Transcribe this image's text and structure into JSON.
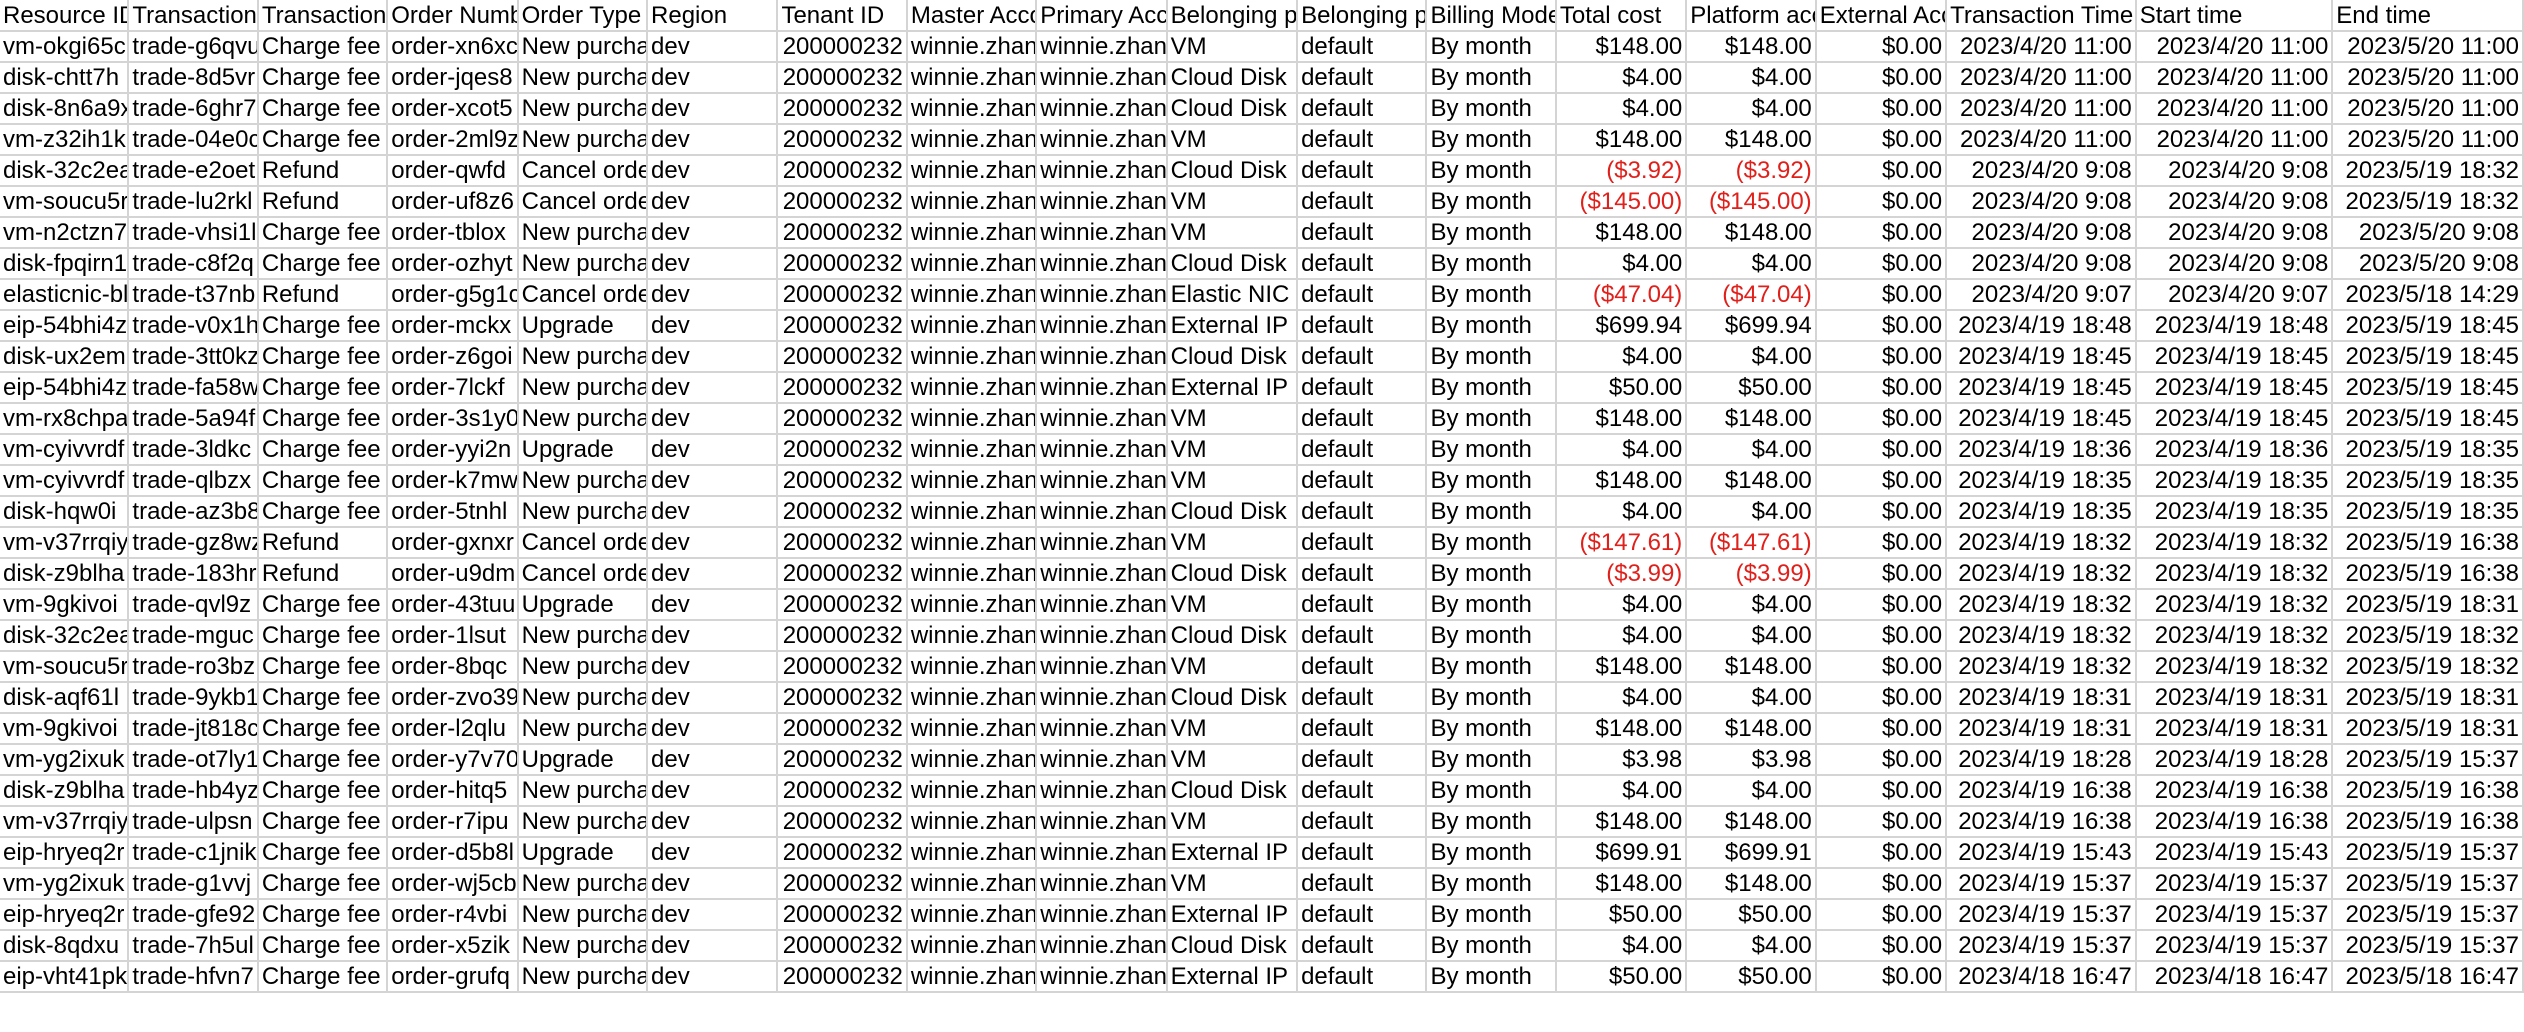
{
  "columns": [
    "Resource ID",
    "Transaction",
    "Transaction",
    "Order Numb",
    "Order Type",
    "Region",
    "Tenant ID",
    "Master Acco",
    "Primary Acc",
    "Belonging p",
    "Belonging p",
    "Billing Mode",
    "Total cost",
    "Platform acc",
    "External Acc",
    "Transaction Time",
    "Start time",
    "End time"
  ],
  "rows": [
    [
      "vm-okgi65c",
      "trade-g6qvu",
      "Charge fee",
      "order-xn6xc",
      "New purcha",
      "dev",
      "200000232",
      "winnie.zhan",
      "winnie.zhan",
      "VM",
      "default",
      "By month",
      "$148.00",
      "$148.00",
      "$0.00",
      "2023/4/20 11:00",
      "2023/4/20 11:00",
      "2023/5/20 11:00"
    ],
    [
      "disk-chtt7h",
      "trade-8d5vr",
      "Charge fee",
      "order-jqes8",
      "New purcha",
      "dev",
      "200000232",
      "winnie.zhan",
      "winnie.zhan",
      "Cloud Disk",
      "default",
      "By month",
      "$4.00",
      "$4.00",
      "$0.00",
      "2023/4/20 11:00",
      "2023/4/20 11:00",
      "2023/5/20 11:00"
    ],
    [
      "disk-8n6a9x",
      "trade-6ghr7",
      "Charge fee",
      "order-xcot5",
      "New purcha",
      "dev",
      "200000232",
      "winnie.zhan",
      "winnie.zhan",
      "Cloud Disk",
      "default",
      "By month",
      "$4.00",
      "$4.00",
      "$0.00",
      "2023/4/20 11:00",
      "2023/4/20 11:00",
      "2023/5/20 11:00"
    ],
    [
      "vm-z32ih1k",
      "trade-04e0c",
      "Charge fee",
      "order-2ml9z",
      "New purcha",
      "dev",
      "200000232",
      "winnie.zhan",
      "winnie.zhan",
      "VM",
      "default",
      "By month",
      "$148.00",
      "$148.00",
      "$0.00",
      "2023/4/20 11:00",
      "2023/4/20 11:00",
      "2023/5/20 11:00"
    ],
    [
      "disk-32c2ea",
      "trade-e2oet",
      "Refund",
      "order-qwfd",
      "Cancel orde",
      "dev",
      "200000232",
      "winnie.zhan",
      "winnie.zhan",
      "Cloud Disk",
      "default",
      "By month",
      "($3.92)",
      "($3.92)",
      "$0.00",
      "2023/4/20 9:08",
      "2023/4/20 9:08",
      "2023/5/19 18:32"
    ],
    [
      "vm-soucu5r",
      "trade-lu2rkl",
      "Refund",
      "order-uf8z6",
      "Cancel orde",
      "dev",
      "200000232",
      "winnie.zhan",
      "winnie.zhan",
      "VM",
      "default",
      "By month",
      "($145.00)",
      "($145.00)",
      "$0.00",
      "2023/4/20 9:08",
      "2023/4/20 9:08",
      "2023/5/19 18:32"
    ],
    [
      "vm-n2ctzn7",
      "trade-vhsi1l",
      "Charge fee",
      "order-tblox",
      "New purcha",
      "dev",
      "200000232",
      "winnie.zhan",
      "winnie.zhan",
      "VM",
      "default",
      "By month",
      "$148.00",
      "$148.00",
      "$0.00",
      "2023/4/20 9:08",
      "2023/4/20 9:08",
      "2023/5/20 9:08"
    ],
    [
      "disk-fpqirn1",
      "trade-c8f2q",
      "Charge fee",
      "order-ozhyt",
      "New purcha",
      "dev",
      "200000232",
      "winnie.zhan",
      "winnie.zhan",
      "Cloud Disk",
      "default",
      "By month",
      "$4.00",
      "$4.00",
      "$0.00",
      "2023/4/20 9:08",
      "2023/4/20 9:08",
      "2023/5/20 9:08"
    ],
    [
      "elasticnic-bl",
      "trade-t37nb",
      "Refund",
      "order-g5g1c",
      "Cancel orde",
      "dev",
      "200000232",
      "winnie.zhan",
      "winnie.zhan",
      "Elastic NIC",
      "default",
      "By month",
      "($47.04)",
      "($47.04)",
      "$0.00",
      "2023/4/20 9:07",
      "2023/4/20 9:07",
      "2023/5/18 14:29"
    ],
    [
      "eip-54bhi4z",
      "trade-v0x1h",
      "Charge fee",
      "order-mckx",
      "Upgrade",
      "dev",
      "200000232",
      "winnie.zhan",
      "winnie.zhan",
      "External IP",
      "default",
      "By month",
      "$699.94",
      "$699.94",
      "$0.00",
      "2023/4/19 18:48",
      "2023/4/19 18:48",
      "2023/5/19 18:45"
    ],
    [
      "disk-ux2em",
      "trade-3tt0kz",
      "Charge fee",
      "order-z6goi",
      "New purcha",
      "dev",
      "200000232",
      "winnie.zhan",
      "winnie.zhan",
      "Cloud Disk",
      "default",
      "By month",
      "$4.00",
      "$4.00",
      "$0.00",
      "2023/4/19 18:45",
      "2023/4/19 18:45",
      "2023/5/19 18:45"
    ],
    [
      "eip-54bhi4z",
      "trade-fa58w",
      "Charge fee",
      "order-7lckf",
      "New purcha",
      "dev",
      "200000232",
      "winnie.zhan",
      "winnie.zhan",
      "External IP",
      "default",
      "By month",
      "$50.00",
      "$50.00",
      "$0.00",
      "2023/4/19 18:45",
      "2023/4/19 18:45",
      "2023/5/19 18:45"
    ],
    [
      "vm-rx8chpa",
      "trade-5a94f",
      "Charge fee",
      "order-3s1y0",
      "New purcha",
      "dev",
      "200000232",
      "winnie.zhan",
      "winnie.zhan",
      "VM",
      "default",
      "By month",
      "$148.00",
      "$148.00",
      "$0.00",
      "2023/4/19 18:45",
      "2023/4/19 18:45",
      "2023/5/19 18:45"
    ],
    [
      "vm-cyivvrdf",
      "trade-3ldkc",
      "Charge fee",
      "order-yyi2n",
      "Upgrade",
      "dev",
      "200000232",
      "winnie.zhan",
      "winnie.zhan",
      "VM",
      "default",
      "By month",
      "$4.00",
      "$4.00",
      "$0.00",
      "2023/4/19 18:36",
      "2023/4/19 18:36",
      "2023/5/19 18:35"
    ],
    [
      "vm-cyivvrdf",
      "trade-qlbzx",
      "Charge fee",
      "order-k7mw",
      "New purcha",
      "dev",
      "200000232",
      "winnie.zhan",
      "winnie.zhan",
      "VM",
      "default",
      "By month",
      "$148.00",
      "$148.00",
      "$0.00",
      "2023/4/19 18:35",
      "2023/4/19 18:35",
      "2023/5/19 18:35"
    ],
    [
      "disk-hqw0i",
      "trade-az3b8",
      "Charge fee",
      "order-5tnhl",
      "New purcha",
      "dev",
      "200000232",
      "winnie.zhan",
      "winnie.zhan",
      "Cloud Disk",
      "default",
      "By month",
      "$4.00",
      "$4.00",
      "$0.00",
      "2023/4/19 18:35",
      "2023/4/19 18:35",
      "2023/5/19 18:35"
    ],
    [
      "vm-v37rrqiy",
      "trade-gz8wz",
      "Refund",
      "order-gxnxr",
      "Cancel orde",
      "dev",
      "200000232",
      "winnie.zhan",
      "winnie.zhan",
      "VM",
      "default",
      "By month",
      "($147.61)",
      "($147.61)",
      "$0.00",
      "2023/4/19 18:32",
      "2023/4/19 18:32",
      "2023/5/19 16:38"
    ],
    [
      "disk-z9blha",
      "trade-183hr",
      "Refund",
      "order-u9dm",
      "Cancel orde",
      "dev",
      "200000232",
      "winnie.zhan",
      "winnie.zhan",
      "Cloud Disk",
      "default",
      "By month",
      "($3.99)",
      "($3.99)",
      "$0.00",
      "2023/4/19 18:32",
      "2023/4/19 18:32",
      "2023/5/19 16:38"
    ],
    [
      "vm-9gkivoi",
      "trade-qvl9z",
      "Charge fee",
      "order-43tuu",
      "Upgrade",
      "dev",
      "200000232",
      "winnie.zhan",
      "winnie.zhan",
      "VM",
      "default",
      "By month",
      "$4.00",
      "$4.00",
      "$0.00",
      "2023/4/19 18:32",
      "2023/4/19 18:32",
      "2023/5/19 18:31"
    ],
    [
      "disk-32c2ea",
      "trade-mguc",
      "Charge fee",
      "order-1lsut",
      "New purcha",
      "dev",
      "200000232",
      "winnie.zhan",
      "winnie.zhan",
      "Cloud Disk",
      "default",
      "By month",
      "$4.00",
      "$4.00",
      "$0.00",
      "2023/4/19 18:32",
      "2023/4/19 18:32",
      "2023/5/19 18:32"
    ],
    [
      "vm-soucu5r",
      "trade-ro3bz",
      "Charge fee",
      "order-8bqc",
      "New purcha",
      "dev",
      "200000232",
      "winnie.zhan",
      "winnie.zhan",
      "VM",
      "default",
      "By month",
      "$148.00",
      "$148.00",
      "$0.00",
      "2023/4/19 18:32",
      "2023/4/19 18:32",
      "2023/5/19 18:32"
    ],
    [
      "disk-aqf61l",
      "trade-9ykb1",
      "Charge fee",
      "order-zvo39",
      "New purcha",
      "dev",
      "200000232",
      "winnie.zhan",
      "winnie.zhan",
      "Cloud Disk",
      "default",
      "By month",
      "$4.00",
      "$4.00",
      "$0.00",
      "2023/4/19 18:31",
      "2023/4/19 18:31",
      "2023/5/19 18:31"
    ],
    [
      "vm-9gkivoi",
      "trade-jt818c",
      "Charge fee",
      "order-l2qlu",
      "New purcha",
      "dev",
      "200000232",
      "winnie.zhan",
      "winnie.zhan",
      "VM",
      "default",
      "By month",
      "$148.00",
      "$148.00",
      "$0.00",
      "2023/4/19 18:31",
      "2023/4/19 18:31",
      "2023/5/19 18:31"
    ],
    [
      "vm-yg2ixuk",
      "trade-ot7ly1",
      "Charge fee",
      "order-y7v70",
      "Upgrade",
      "dev",
      "200000232",
      "winnie.zhan",
      "winnie.zhan",
      "VM",
      "default",
      "By month",
      "$3.98",
      "$3.98",
      "$0.00",
      "2023/4/19 18:28",
      "2023/4/19 18:28",
      "2023/5/19 15:37"
    ],
    [
      "disk-z9blha",
      "trade-hb4yz",
      "Charge fee",
      "order-hitq5",
      "New purcha",
      "dev",
      "200000232",
      "winnie.zhan",
      "winnie.zhan",
      "Cloud Disk",
      "default",
      "By month",
      "$4.00",
      "$4.00",
      "$0.00",
      "2023/4/19 16:38",
      "2023/4/19 16:38",
      "2023/5/19 16:38"
    ],
    [
      "vm-v37rrqiy",
      "trade-ulpsn",
      "Charge fee",
      "order-r7ipu",
      "New purcha",
      "dev",
      "200000232",
      "winnie.zhan",
      "winnie.zhan",
      "VM",
      "default",
      "By month",
      "$148.00",
      "$148.00",
      "$0.00",
      "2023/4/19 16:38",
      "2023/4/19 16:38",
      "2023/5/19 16:38"
    ],
    [
      "eip-hryeq2r",
      "trade-c1jnik",
      "Charge fee",
      "order-d5b8l",
      "Upgrade",
      "dev",
      "200000232",
      "winnie.zhan",
      "winnie.zhan",
      "External IP",
      "default",
      "By month",
      "$699.91",
      "$699.91",
      "$0.00",
      "2023/4/19 15:43",
      "2023/4/19 15:43",
      "2023/5/19 15:37"
    ],
    [
      "vm-yg2ixuk",
      "trade-g1vvj",
      "Charge fee",
      "order-wj5cb",
      "New purcha",
      "dev",
      "200000232",
      "winnie.zhan",
      "winnie.zhan",
      "VM",
      "default",
      "By month",
      "$148.00",
      "$148.00",
      "$0.00",
      "2023/4/19 15:37",
      "2023/4/19 15:37",
      "2023/5/19 15:37"
    ],
    [
      "eip-hryeq2r",
      "trade-gfe92",
      "Charge fee",
      "order-r4vbi",
      "New purcha",
      "dev",
      "200000232",
      "winnie.zhan",
      "winnie.zhan",
      "External IP",
      "default",
      "By month",
      "$50.00",
      "$50.00",
      "$0.00",
      "2023/4/19 15:37",
      "2023/4/19 15:37",
      "2023/5/19 15:37"
    ],
    [
      "disk-8qdxu",
      "trade-7h5ul",
      "Charge fee",
      "order-x5zik",
      "New purcha",
      "dev",
      "200000232",
      "winnie.zhan",
      "winnie.zhan",
      "Cloud Disk",
      "default",
      "By month",
      "$4.00",
      "$4.00",
      "$0.00",
      "2023/4/19 15:37",
      "2023/4/19 15:37",
      "2023/5/19 15:37"
    ],
    [
      "eip-vht41pk",
      "trade-hfvn7",
      "Charge fee",
      "order-grufq",
      "New purcha",
      "dev",
      "200000232",
      "winnie.zhan",
      "winnie.zhan",
      "External IP",
      "default",
      "By month",
      "$50.00",
      "$50.00",
      "$0.00",
      "2023/4/18 16:47",
      "2023/4/18 16:47",
      "2023/5/18 16:47"
    ]
  ],
  "colors": {
    "negative": "#e0201b",
    "grid": "#d4d4d4"
  }
}
